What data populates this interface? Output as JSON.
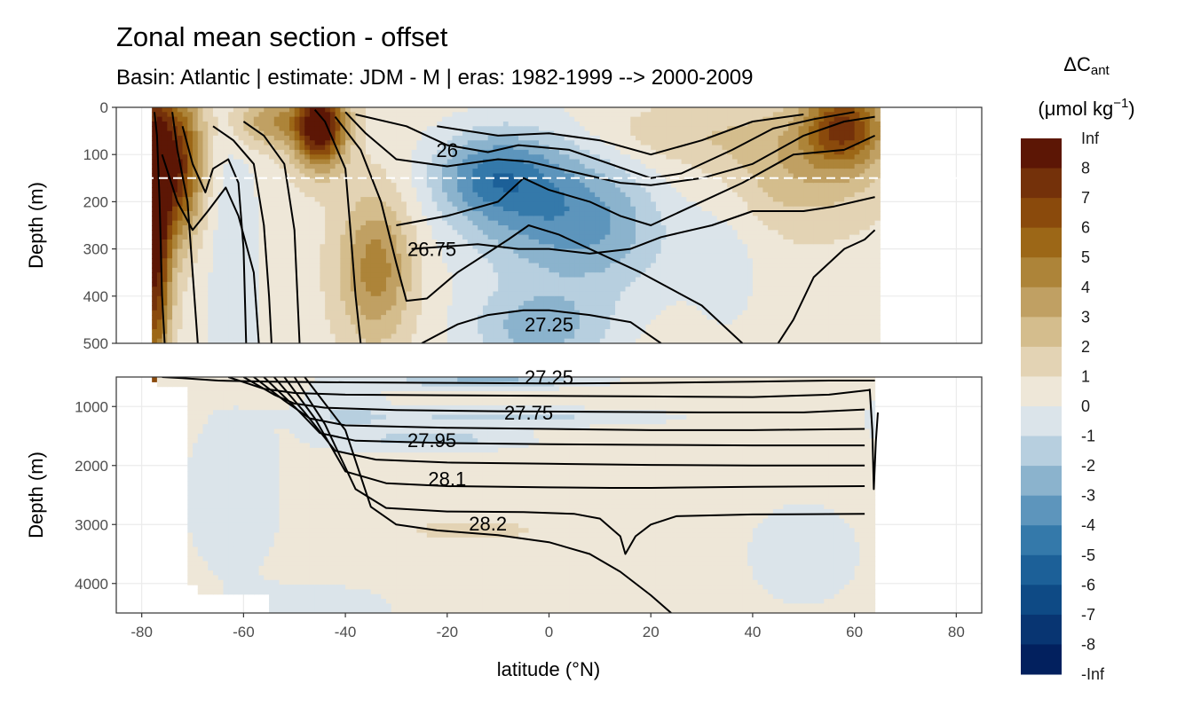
{
  "header": {
    "title": "Zonal mean section - offset",
    "subtitle": "Basin: Atlantic | estimate: JDM - M | eras: 1982-1999 --> 2000-2009"
  },
  "chart_data": {
    "type": "filled-contour",
    "x": {
      "label": "latitude (°N)",
      "ticks": [
        -80,
        -60,
        -40,
        -20,
        0,
        20,
        40,
        60,
        80
      ],
      "lim": [
        -85,
        85
      ]
    },
    "panels": [
      {
        "name": "upper",
        "ylabel": "Depth (m)",
        "ylim": [
          0,
          500
        ],
        "yticks": [
          0,
          100,
          200,
          300,
          400,
          500
        ],
        "reference_depth": 150,
        "contour_labels": [
          {
            "text": "26",
            "lat": -20,
            "depth": 90
          },
          {
            "text": "26.75",
            "lat": -23,
            "depth": 300
          },
          {
            "text": "27.25",
            "lat": 0,
            "depth": 460
          }
        ]
      },
      {
        "name": "lower",
        "ylabel": "Depth (m)",
        "ylim": [
          500,
          4500
        ],
        "yticks": [
          1000,
          2000,
          3000,
          4000
        ],
        "contour_labels": [
          {
            "text": "27.25",
            "lat": 0,
            "depth": 500
          },
          {
            "text": "27.75",
            "lat": -4,
            "depth": 1100
          },
          {
            "text": "27.95",
            "lat": -23,
            "depth": 1570
          },
          {
            "text": "28.1",
            "lat": -20,
            "depth": 2220
          },
          {
            "text": "28.2",
            "lat": -12,
            "depth": 2980
          }
        ]
      }
    ],
    "legend": {
      "title_symbol": "ΔC",
      "title_sub": "ant",
      "unit_prefix": "(μmol kg",
      "unit_sup": "−1",
      "unit_suffix": ")",
      "labels": [
        "Inf",
        "8",
        "7",
        "6",
        "5",
        "4",
        "3",
        "2",
        "1",
        "0",
        "-1",
        "-2",
        "-3",
        "-4",
        "-5",
        "-6",
        "-7",
        "-8",
        "-Inf"
      ],
      "colors": [
        "#5c1605",
        "#74310a",
        "#8a4a0c",
        "#9c6717",
        "#ad8439",
        "#c0a063",
        "#d4bd8d",
        "#e3d3b4",
        "#eee7d8",
        "#dbe4ea",
        "#b7cfdf",
        "#8bb3cd",
        "#5d95bc",
        "#3479aa",
        "#1c6098",
        "#0e4a85",
        "#083572",
        "#02205e"
      ],
      "position": "right"
    }
  }
}
